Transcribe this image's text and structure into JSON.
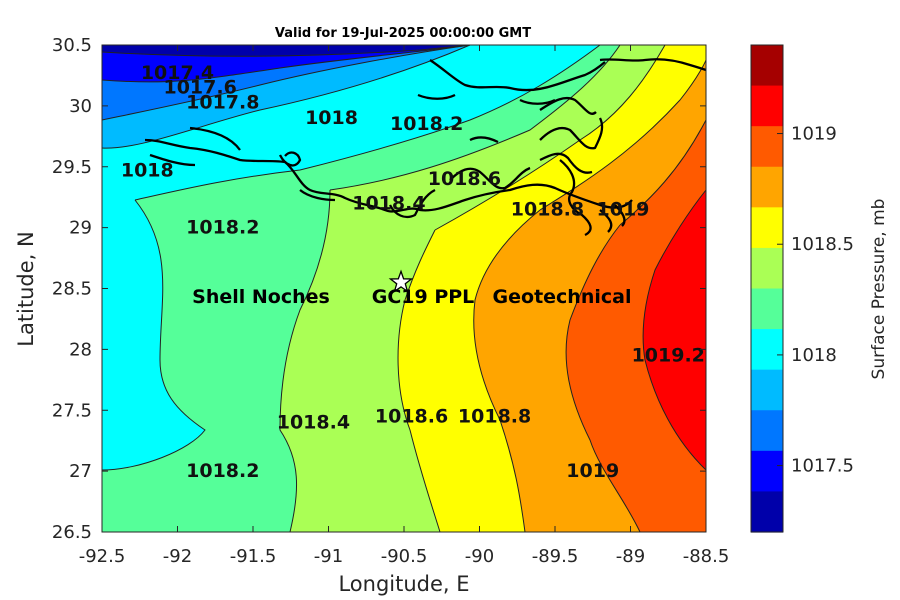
{
  "title": "Valid for 19-Jul-2025 00:00:00 GMT",
  "x_axis": {
    "label": "Longitude, E",
    "ticks": [
      "-92.5",
      "-92",
      "-91.5",
      "-91",
      "-90.5",
      "-90",
      "-89.5",
      "-89",
      "-88.5"
    ]
  },
  "y_axis": {
    "label": "Latitude, N",
    "ticks": [
      "30.5",
      "30",
      "29.5",
      "29",
      "28.5",
      "28",
      "27.5",
      "27",
      "26.5"
    ]
  },
  "colorbar": {
    "label": "Surface Pressure, mb",
    "ticks": [
      "1019",
      "1018.5",
      "1018",
      "1017.5"
    ],
    "colors_top_to_bottom": [
      "#a50000",
      "#ff0000",
      "#ff5a00",
      "#ffa500",
      "#ffff00",
      "#aaff55",
      "#55ff99",
      "#00ffff",
      "#00bbff",
      "#0077ff",
      "#0000ff",
      "#0000aa"
    ]
  },
  "map": {
    "lon_range": [
      -92.5,
      -88.5
    ],
    "lat_range": [
      26.5,
      30.5
    ],
    "site": {
      "name_parts": [
        "Shell Noches",
        "GC19 PPL",
        "Geotechnical"
      ],
      "lon": -90.52,
      "lat": 28.55,
      "marker": "star-icon"
    },
    "contour_labels": [
      {
        "text": "1017.4",
        "lon": -92.0,
        "lat": 30.22
      },
      {
        "text": "1017.6",
        "lon": -91.85,
        "lat": 30.1
      },
      {
        "text": "1017.8",
        "lon": -91.7,
        "lat": 29.98
      },
      {
        "text": "1018",
        "lon": -90.98,
        "lat": 29.85
      },
      {
        "text": "1018.2",
        "lon": -90.35,
        "lat": 29.8
      },
      {
        "text": "1018",
        "lon": -92.2,
        "lat": 29.42
      },
      {
        "text": "1018.2",
        "lon": -91.7,
        "lat": 28.95
      },
      {
        "text": "1018.4",
        "lon": -90.6,
        "lat": 29.15
      },
      {
        "text": "1018.6",
        "lon": -90.1,
        "lat": 29.35
      },
      {
        "text": "1018.8",
        "lon": -89.55,
        "lat": 29.1
      },
      {
        "text": "1019",
        "lon": -89.05,
        "lat": 29.1
      },
      {
        "text": "1019.2",
        "lon": -88.75,
        "lat": 27.9
      },
      {
        "text": "1018.2",
        "lon": -91.7,
        "lat": 26.95
      },
      {
        "text": "1018.4",
        "lon": -91.1,
        "lat": 27.35
      },
      {
        "text": "1018.6",
        "lon": -90.45,
        "lat": 27.4
      },
      {
        "text": "1018.8",
        "lon": -89.9,
        "lat": 27.4
      },
      {
        "text": "1019",
        "lon": -89.25,
        "lat": 26.95
      }
    ]
  }
}
